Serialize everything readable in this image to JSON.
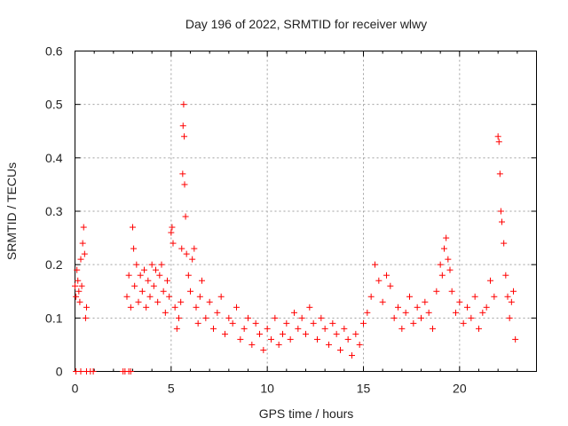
{
  "chart_data": {
    "type": "scatter",
    "title": "Day 196 of 2022, SRMTID for receiver wlwy",
    "xlabel": "GPS time / hours",
    "ylabel": "SRMTID / TECUs",
    "xlim": [
      0,
      24
    ],
    "ylim": [
      0,
      0.6
    ],
    "x_ticks": [
      0,
      5,
      10,
      15,
      20
    ],
    "x_tick_labels": [
      "0",
      "5",
      "10",
      "15",
      "20"
    ],
    "y_ticks": [
      0,
      0.1,
      0.2,
      0.3,
      0.4,
      0.5,
      0.6
    ],
    "y_tick_labels": [
      "0",
      "0.1",
      "0.2",
      "0.3",
      "0.4",
      "0.5",
      "0.6"
    ],
    "grid": true,
    "marker": "+",
    "series": [
      {
        "name": "SRMTID",
        "color": "#ff0000",
        "points": [
          [
            0.0,
            0.16
          ],
          [
            0.05,
            0.14
          ],
          [
            0.1,
            0.19
          ],
          [
            0.15,
            0.17
          ],
          [
            0.2,
            0.15
          ],
          [
            0.25,
            0.13
          ],
          [
            0.3,
            0.21
          ],
          [
            0.35,
            0.16
          ],
          [
            0.4,
            0.24
          ],
          [
            0.45,
            0.27
          ],
          [
            0.5,
            0.22
          ],
          [
            0.55,
            0.1
          ],
          [
            0.6,
            0.12
          ],
          [
            0.05,
            0.0
          ],
          [
            0.3,
            0.0
          ],
          [
            0.6,
            0.0
          ],
          [
            0.8,
            0.0
          ],
          [
            0.95,
            0.0
          ],
          [
            2.5,
            0.0
          ],
          [
            2.6,
            0.0
          ],
          [
            2.8,
            0.0
          ],
          [
            2.9,
            0.0
          ],
          [
            2.7,
            0.14
          ],
          [
            2.8,
            0.18
          ],
          [
            2.9,
            0.12
          ],
          [
            3.0,
            0.27
          ],
          [
            3.05,
            0.23
          ],
          [
            3.1,
            0.16
          ],
          [
            3.2,
            0.2
          ],
          [
            3.3,
            0.13
          ],
          [
            3.4,
            0.18
          ],
          [
            3.5,
            0.15
          ],
          [
            3.6,
            0.19
          ],
          [
            3.7,
            0.12
          ],
          [
            3.8,
            0.17
          ],
          [
            3.9,
            0.14
          ],
          [
            4.0,
            0.2
          ],
          [
            4.1,
            0.16
          ],
          [
            4.2,
            0.19
          ],
          [
            4.3,
            0.13
          ],
          [
            4.4,
            0.18
          ],
          [
            4.5,
            0.2
          ],
          [
            4.6,
            0.15
          ],
          [
            4.7,
            0.11
          ],
          [
            4.8,
            0.17
          ],
          [
            4.9,
            0.14
          ],
          [
            5.0,
            0.26
          ],
          [
            5.05,
            0.27
          ],
          [
            5.1,
            0.24
          ],
          [
            5.2,
            0.12
          ],
          [
            5.3,
            0.08
          ],
          [
            5.4,
            0.1
          ],
          [
            5.5,
            0.13
          ],
          [
            5.55,
            0.23
          ],
          [
            5.6,
            0.37
          ],
          [
            5.62,
            0.46
          ],
          [
            5.65,
            0.5
          ],
          [
            5.68,
            0.44
          ],
          [
            5.7,
            0.35
          ],
          [
            5.75,
            0.29
          ],
          [
            5.8,
            0.22
          ],
          [
            5.9,
            0.18
          ],
          [
            6.0,
            0.15
          ],
          [
            6.1,
            0.21
          ],
          [
            6.2,
            0.23
          ],
          [
            6.3,
            0.12
          ],
          [
            6.4,
            0.09
          ],
          [
            6.5,
            0.14
          ],
          [
            6.6,
            0.17
          ],
          [
            6.8,
            0.1
          ],
          [
            7.0,
            0.13
          ],
          [
            7.2,
            0.08
          ],
          [
            7.4,
            0.11
          ],
          [
            7.6,
            0.14
          ],
          [
            7.8,
            0.07
          ],
          [
            8.0,
            0.1
          ],
          [
            8.2,
            0.09
          ],
          [
            8.4,
            0.12
          ],
          [
            8.6,
            0.06
          ],
          [
            8.8,
            0.08
          ],
          [
            9.0,
            0.1
          ],
          [
            9.2,
            0.05
          ],
          [
            9.4,
            0.09
          ],
          [
            9.6,
            0.07
          ],
          [
            9.8,
            0.04
          ],
          [
            10.0,
            0.08
          ],
          [
            10.2,
            0.06
          ],
          [
            10.4,
            0.1
          ],
          [
            10.6,
            0.05
          ],
          [
            10.8,
            0.07
          ],
          [
            11.0,
            0.09
          ],
          [
            11.2,
            0.06
          ],
          [
            11.4,
            0.11
          ],
          [
            11.6,
            0.08
          ],
          [
            11.8,
            0.1
          ],
          [
            12.0,
            0.07
          ],
          [
            12.2,
            0.12
          ],
          [
            12.4,
            0.09
          ],
          [
            12.6,
            0.06
          ],
          [
            12.8,
            0.1
          ],
          [
            13.0,
            0.08
          ],
          [
            13.2,
            0.05
          ],
          [
            13.4,
            0.09
          ],
          [
            13.6,
            0.07
          ],
          [
            13.8,
            0.04
          ],
          [
            14.0,
            0.08
          ],
          [
            14.2,
            0.06
          ],
          [
            14.4,
            0.03
          ],
          [
            14.6,
            0.07
          ],
          [
            14.8,
            0.05
          ],
          [
            15.0,
            0.09
          ],
          [
            15.2,
            0.11
          ],
          [
            15.4,
            0.14
          ],
          [
            15.6,
            0.2
          ],
          [
            15.8,
            0.17
          ],
          [
            16.0,
            0.13
          ],
          [
            16.2,
            0.18
          ],
          [
            16.4,
            0.16
          ],
          [
            16.6,
            0.1
          ],
          [
            16.8,
            0.12
          ],
          [
            17.0,
            0.08
          ],
          [
            17.2,
            0.11
          ],
          [
            17.4,
            0.14
          ],
          [
            17.6,
            0.09
          ],
          [
            17.8,
            0.12
          ],
          [
            18.0,
            0.1
          ],
          [
            18.2,
            0.13
          ],
          [
            18.4,
            0.11
          ],
          [
            18.6,
            0.08
          ],
          [
            18.8,
            0.15
          ],
          [
            19.0,
            0.2
          ],
          [
            19.1,
            0.18
          ],
          [
            19.2,
            0.23
          ],
          [
            19.3,
            0.25
          ],
          [
            19.4,
            0.21
          ],
          [
            19.5,
            0.19
          ],
          [
            19.6,
            0.15
          ],
          [
            19.8,
            0.11
          ],
          [
            20.0,
            0.13
          ],
          [
            20.2,
            0.09
          ],
          [
            20.4,
            0.12
          ],
          [
            20.6,
            0.1
          ],
          [
            20.8,
            0.14
          ],
          [
            21.0,
            0.08
          ],
          [
            21.2,
            0.11
          ],
          [
            21.4,
            0.12
          ],
          [
            21.6,
            0.17
          ],
          [
            21.8,
            0.14
          ],
          [
            22.0,
            0.44
          ],
          [
            22.05,
            0.43
          ],
          [
            22.1,
            0.37
          ],
          [
            22.15,
            0.3
          ],
          [
            22.2,
            0.28
          ],
          [
            22.3,
            0.24
          ],
          [
            22.4,
            0.18
          ],
          [
            22.5,
            0.14
          ],
          [
            22.6,
            0.1
          ],
          [
            22.7,
            0.13
          ],
          [
            22.8,
            0.15
          ],
          [
            22.9,
            0.06
          ]
        ]
      }
    ]
  }
}
